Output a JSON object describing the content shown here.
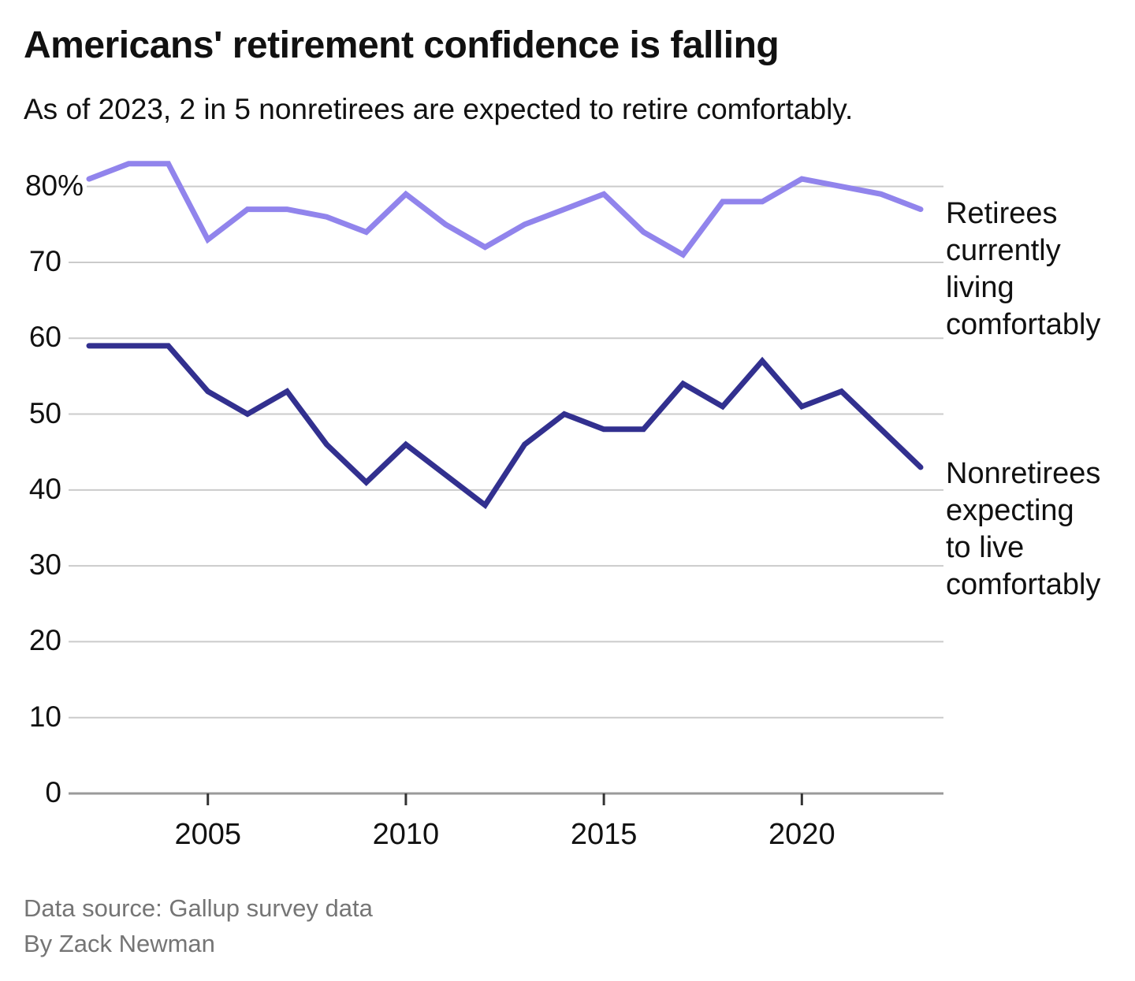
{
  "header": {
    "title": "Americans' retirement confidence is falling",
    "subtitle": "As of 2023, 2 in 5 nonretirees are expected to retire comfortably."
  },
  "colors": {
    "retirees_line": "#9184EC",
    "nonretirees_line": "#32308F",
    "gridline": "#cbcbcb",
    "axis_line": "#9a9a9a",
    "tick_mark": "#333333",
    "text": "#111111",
    "footer_text": "#757575"
  },
  "chart_data": {
    "type": "line",
    "title": "Americans' retirement confidence is falling",
    "subtitle": "As of 2023, 2 in 5 nonretirees are expected to retire comfortably.",
    "x": [
      2002,
      2003,
      2004,
      2005,
      2006,
      2007,
      2008,
      2009,
      2010,
      2011,
      2012,
      2013,
      2014,
      2015,
      2016,
      2017,
      2018,
      2019,
      2020,
      2021,
      2022,
      2023
    ],
    "series": [
      {
        "name": "Retirees currently living comfortably",
        "label_lines": [
          "Retirees",
          "currently",
          "living",
          "comfortably"
        ],
        "color_key": "retirees_line",
        "values": [
          81,
          83,
          83,
          73,
          77,
          77,
          76,
          74,
          79,
          75,
          72,
          75,
          77,
          79,
          74,
          71,
          78,
          78,
          81,
          80,
          79,
          77
        ]
      },
      {
        "name": "Nonretirees expecting to live comfortably",
        "label_lines": [
          "Nonretirees",
          "expecting",
          "to live",
          "comfortably"
        ],
        "color_key": "nonretirees_line",
        "values": [
          59,
          59,
          59,
          53,
          50,
          53,
          46,
          41,
          46,
          42,
          38,
          46,
          50,
          48,
          48,
          54,
          51,
          57,
          51,
          53,
          48,
          43
        ]
      }
    ],
    "y_ticks": [
      {
        "value": 0,
        "label": "0"
      },
      {
        "value": 10,
        "label": "10"
      },
      {
        "value": 20,
        "label": "20"
      },
      {
        "value": 30,
        "label": "30"
      },
      {
        "value": 40,
        "label": "40"
      },
      {
        "value": 50,
        "label": "50"
      },
      {
        "value": 60,
        "label": "60"
      },
      {
        "value": 70,
        "label": "70"
      },
      {
        "value": 80,
        "label": "80%"
      }
    ],
    "x_ticks": [
      {
        "value": 2005,
        "label": "2005"
      },
      {
        "value": 2010,
        "label": "2010"
      },
      {
        "value": 2015,
        "label": "2015"
      },
      {
        "value": 2020,
        "label": "2020"
      }
    ],
    "ylim": [
      0,
      85
    ],
    "xlim": [
      2002,
      2023
    ],
    "grid": true,
    "legend_position": "right-annotations"
  },
  "footer": {
    "source": "Data source: Gallup survey data",
    "byline": "By Zack Newman"
  }
}
